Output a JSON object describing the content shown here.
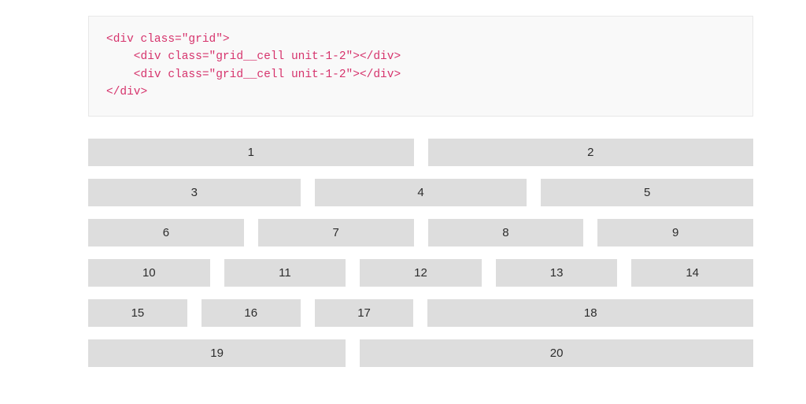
{
  "code": {
    "line1": "<div class=\"grid\">",
    "line2": "    <div class=\"grid__cell unit-1-2\"></div>",
    "line3": "    <div class=\"grid__cell unit-1-2\"></div>",
    "line4": "</div>"
  },
  "colors": {
    "code_text": "#d6336c",
    "code_bg": "#f9f9f9",
    "code_border": "#e8e8e8",
    "cell_bg": "#dddddd",
    "cell_text": "#2d2d2d",
    "page_bg": "#ffffff"
  },
  "rows": [
    {
      "cells": [
        {
          "label": "1",
          "unit": "u-1-2"
        },
        {
          "label": "2",
          "unit": "u-1-2"
        }
      ]
    },
    {
      "cells": [
        {
          "label": "3",
          "unit": "u-1-3"
        },
        {
          "label": "4",
          "unit": "u-1-3"
        },
        {
          "label": "5",
          "unit": "u-1-3"
        }
      ]
    },
    {
      "cells": [
        {
          "label": "6",
          "unit": "u-1-4"
        },
        {
          "label": "7",
          "unit": "u-1-4"
        },
        {
          "label": "8",
          "unit": "u-1-4"
        },
        {
          "label": "9",
          "unit": "u-1-4"
        }
      ]
    },
    {
      "cells": [
        {
          "label": "10",
          "unit": "u-1-5"
        },
        {
          "label": "11",
          "unit": "u-1-5"
        },
        {
          "label": "12",
          "unit": "u-1-5"
        },
        {
          "label": "13",
          "unit": "u-1-5"
        },
        {
          "label": "14",
          "unit": "u-1-5"
        }
      ]
    },
    {
      "cells": [
        {
          "label": "15",
          "unit": "u-1-6"
        },
        {
          "label": "16",
          "unit": "u-1-6"
        },
        {
          "label": "17",
          "unit": "u-1-6"
        },
        {
          "label": "18",
          "unit": "u-3-6"
        }
      ]
    },
    {
      "cells": [
        {
          "label": "19",
          "unit": "u-2-5"
        },
        {
          "label": "20",
          "unit": "u-3-5"
        }
      ]
    }
  ]
}
